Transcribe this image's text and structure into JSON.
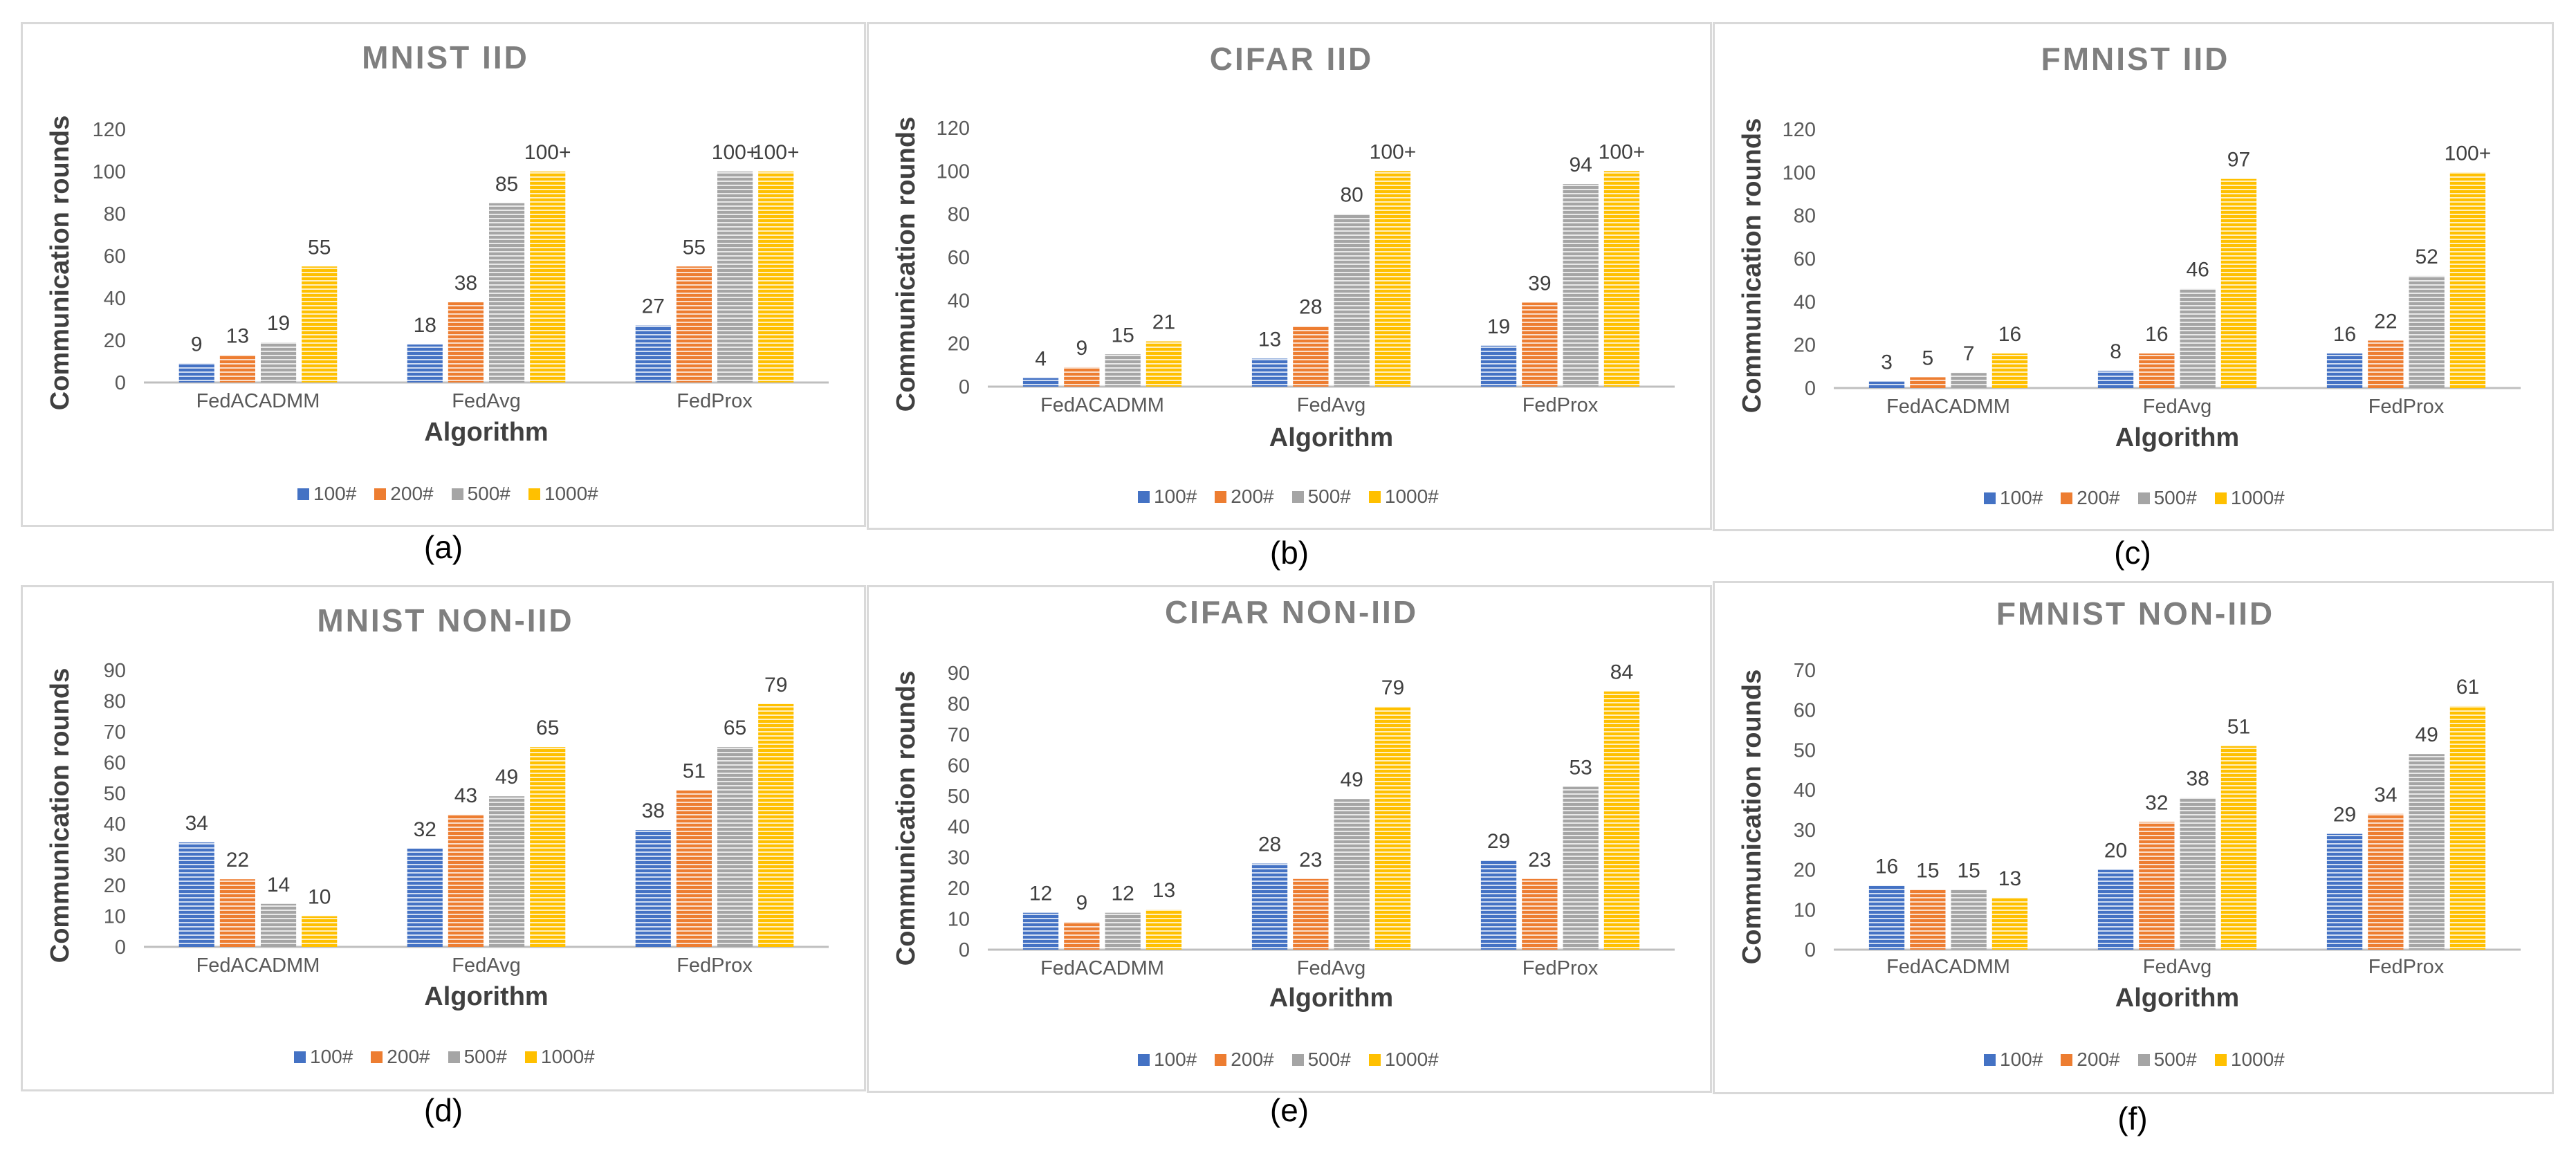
{
  "colors": {
    "s100": "#4472C4",
    "s200": "#ED7D31",
    "s500": "#A5A5A5",
    "s1000": "#FFC000"
  },
  "chart_data": [
    {
      "type": "bar",
      "caption": "(a)",
      "title": "MNIST IID",
      "xlabel": "Algorithm",
      "ylabel": "Communication rounds",
      "categories": [
        "FedACADMM",
        "FedAvg",
        "FedProx"
      ],
      "ylim": [
        0,
        120
      ],
      "yticks": [
        "0",
        "20",
        "40",
        "60",
        "80",
        "100",
        "120"
      ],
      "ystep": 20,
      "series": [
        {
          "name": "100#",
          "values": [
            9,
            18,
            27
          ],
          "labels": [
            "9",
            "18",
            "27"
          ]
        },
        {
          "name": "200#",
          "values": [
            13,
            38,
            55
          ],
          "labels": [
            "13",
            "38",
            "55"
          ]
        },
        {
          "name": "500#",
          "values": [
            19,
            85,
            100
          ],
          "labels": [
            "19",
            "85",
            "100+"
          ]
        },
        {
          "name": "1000#",
          "values": [
            55,
            100,
            100
          ],
          "labels": [
            "55",
            "100+",
            "100+"
          ]
        }
      ]
    },
    {
      "type": "bar",
      "caption": "(b)",
      "title": "CIFAR IID",
      "xlabel": "Algorithm",
      "ylabel": "Communication rounds",
      "categories": [
        "FedACADMM",
        "FedAvg",
        "FedProx"
      ],
      "ylim": [
        0,
        120
      ],
      "yticks": [
        "0",
        "20",
        "40",
        "60",
        "80",
        "100",
        "120"
      ],
      "ystep": 20,
      "series": [
        {
          "name": "100#",
          "values": [
            4,
            13,
            19
          ],
          "labels": [
            "4",
            "13",
            "19"
          ]
        },
        {
          "name": "200#",
          "values": [
            9,
            28,
            39
          ],
          "labels": [
            "9",
            "28",
            "39"
          ]
        },
        {
          "name": "500#",
          "values": [
            15,
            80,
            94
          ],
          "labels": [
            "15",
            "80",
            "94"
          ]
        },
        {
          "name": "1000#",
          "values": [
            21,
            100,
            100
          ],
          "labels": [
            "21",
            "100+",
            "100+"
          ]
        }
      ]
    },
    {
      "type": "bar",
      "caption": "(c)",
      "title": "FMNIST IID",
      "xlabel": "Algorithm",
      "ylabel": "Communication rounds",
      "categories": [
        "FedACADMM",
        "FedAvg",
        "FedProx"
      ],
      "ylim": [
        0,
        120
      ],
      "yticks": [
        "0",
        "20",
        "40",
        "60",
        "80",
        "100",
        "120"
      ],
      "ystep": 20,
      "series": [
        {
          "name": "100#",
          "values": [
            3,
            8,
            16
          ],
          "labels": [
            "3",
            "8",
            "16"
          ]
        },
        {
          "name": "200#",
          "values": [
            5,
            16,
            22
          ],
          "labels": [
            "5",
            "16",
            "22"
          ]
        },
        {
          "name": "500#",
          "values": [
            7,
            46,
            52
          ],
          "labels": [
            "7",
            "46",
            "52"
          ]
        },
        {
          "name": "1000#",
          "values": [
            16,
            97,
            100
          ],
          "labels": [
            "16",
            "97",
            "100+"
          ]
        }
      ]
    },
    {
      "type": "bar",
      "caption": "(d)",
      "title": "MNIST NON-IID",
      "xlabel": "Algorithm",
      "ylabel": "Communication rounds",
      "categories": [
        "FedACADMM",
        "FedAvg",
        "FedProx"
      ],
      "ylim": [
        0,
        90
      ],
      "yticks": [
        "0",
        "10",
        "20",
        "30",
        "40",
        "50",
        "60",
        "70",
        "80",
        "90"
      ],
      "ystep": 10,
      "series": [
        {
          "name": "100#",
          "values": [
            34,
            32,
            38
          ],
          "labels": [
            "34",
            "32",
            "38"
          ]
        },
        {
          "name": "200#",
          "values": [
            22,
            43,
            51
          ],
          "labels": [
            "22",
            "43",
            "51"
          ]
        },
        {
          "name": "500#",
          "values": [
            14,
            49,
            65
          ],
          "labels": [
            "14",
            "49",
            "65"
          ]
        },
        {
          "name": "1000#",
          "values": [
            10,
            65,
            79
          ],
          "labels": [
            "10",
            "65",
            "79"
          ]
        }
      ]
    },
    {
      "type": "bar",
      "caption": "(e)",
      "title": "CIFAR NON-IID",
      "xlabel": "Algorithm",
      "ylabel": "Communication rounds",
      "categories": [
        "FedACADMM",
        "FedAvg",
        "FedProx"
      ],
      "ylim": [
        0,
        90
      ],
      "yticks": [
        "0",
        "10",
        "20",
        "30",
        "40",
        "50",
        "60",
        "70",
        "80",
        "90"
      ],
      "ystep": 10,
      "series": [
        {
          "name": "100#",
          "values": [
            12,
            28,
            29
          ],
          "labels": [
            "12",
            "28",
            "29"
          ]
        },
        {
          "name": "200#",
          "values": [
            9,
            23,
            23
          ],
          "labels": [
            "9",
            "23",
            "23"
          ]
        },
        {
          "name": "500#",
          "values": [
            12,
            49,
            53
          ],
          "labels": [
            "12",
            "49",
            "53"
          ]
        },
        {
          "name": "1000#",
          "values": [
            13,
            79,
            84
          ],
          "labels": [
            "13",
            "79",
            "84"
          ]
        }
      ]
    },
    {
      "type": "bar",
      "caption": "(f)",
      "title": "FMNIST NON-IID",
      "xlabel": "Algorithm",
      "ylabel": "Communication rounds",
      "categories": [
        "FedACADMM",
        "FedAvg",
        "FedProx"
      ],
      "ylim": [
        0,
        70
      ],
      "yticks": [
        "0",
        "10",
        "20",
        "30",
        "40",
        "50",
        "60",
        "70"
      ],
      "ystep": 10,
      "series": [
        {
          "name": "100#",
          "values": [
            16,
            20,
            29
          ],
          "labels": [
            "16",
            "20",
            "29"
          ]
        },
        {
          "name": "200#",
          "values": [
            15,
            32,
            34
          ],
          "labels": [
            "15",
            "32",
            "34"
          ]
        },
        {
          "name": "500#",
          "values": [
            15,
            38,
            49
          ],
          "labels": [
            "15",
            "38",
            "49"
          ]
        },
        {
          "name": "1000#",
          "values": [
            13,
            51,
            61
          ],
          "labels": [
            "13",
            "51",
            "61"
          ]
        }
      ]
    }
  ]
}
